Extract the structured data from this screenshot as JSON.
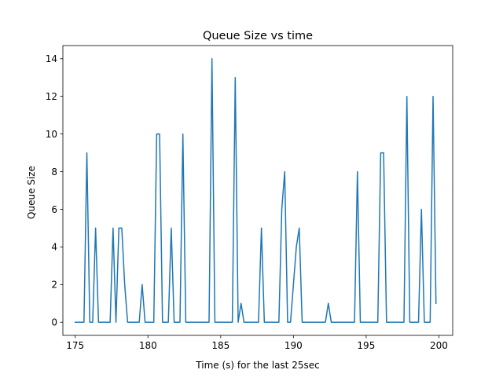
{
  "chart_data": {
    "type": "line",
    "title": "Queue Size vs time",
    "xlabel": "Time (s) for the last 25sec",
    "ylabel": "Queue Size",
    "xlim": [
      174.15,
      200.95
    ],
    "ylim": [
      -0.7,
      14.7
    ],
    "xticks": [
      175,
      180,
      185,
      190,
      195,
      200
    ],
    "yticks": [
      0,
      2,
      4,
      6,
      8,
      10,
      12,
      14
    ],
    "grid": false,
    "line_color": "#1f77b4",
    "series": [
      {
        "x": [
          175.0,
          175.6,
          175.8,
          176.0,
          176.2,
          176.4,
          176.6,
          177.4,
          177.6,
          177.8,
          178.0,
          178.2,
          178.4,
          178.6,
          179.4,
          179.6,
          179.8,
          180.4,
          180.6,
          180.8,
          181.0,
          181.2,
          181.4,
          181.6,
          181.8,
          182.2,
          182.4,
          182.6,
          184.2,
          184.4,
          184.6,
          185.8,
          186.0,
          186.2,
          186.4,
          186.6,
          187.6,
          187.8,
          188.0,
          189.0,
          189.2,
          189.4,
          189.6,
          189.8,
          190.2,
          190.4,
          190.6,
          190.8,
          192.2,
          192.4,
          192.6,
          194.2,
          194.4,
          194.6,
          195.8,
          196.0,
          196.2,
          196.4,
          197.6,
          197.8,
          198.0,
          198.6,
          198.8,
          199.0,
          199.4,
          199.6,
          199.8
        ],
        "y": [
          0,
          0,
          9,
          0,
          0,
          5,
          0,
          0,
          5,
          0,
          5,
          5,
          2,
          0,
          0,
          2,
          0,
          0,
          10,
          10,
          0,
          0,
          0,
          5,
          0,
          0,
          10,
          0,
          0,
          14,
          0,
          0,
          13,
          0,
          1,
          0,
          0,
          5,
          0,
          0,
          6,
          8,
          0,
          0,
          4,
          5,
          0,
          0,
          0,
          1,
          0,
          0,
          8,
          0,
          0,
          9,
          9,
          0,
          0,
          12,
          0,
          0,
          6,
          0,
          0,
          12,
          1
        ]
      }
    ]
  }
}
